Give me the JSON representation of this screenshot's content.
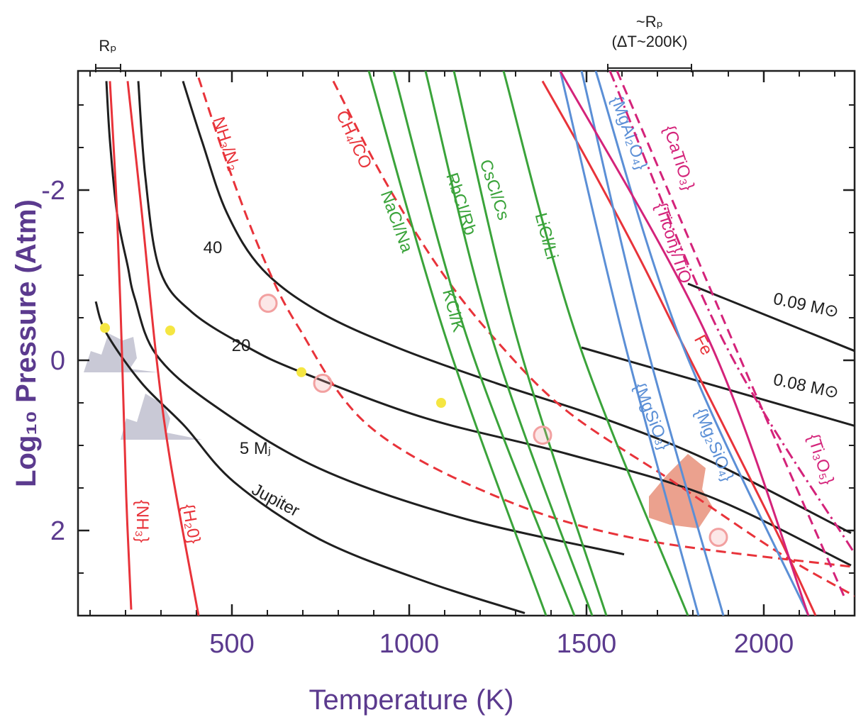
{
  "chart_data": {
    "type": "line",
    "xlabel": "Temperature  (K)",
    "ylabel": "Log₁₀ Pressure  (Atm)",
    "xlim": [
      66,
      2256
    ],
    "xticks": [
      500,
      1000,
      1500,
      2000
    ],
    "ylim": [
      -3.4,
      3.0
    ],
    "yticks": [
      -2,
      0,
      2
    ],
    "y_inverted": true,
    "annotations": [
      "Rₚ",
      "~Rₚ",
      "(ΔT~200K)"
    ],
    "series": [
      {
        "name": "Jupiter",
        "color": "#1f1f1f",
        "dash": "solid",
        "x": [
          116,
          146,
          246,
          366,
          506,
          746,
          1046,
          1326
        ],
        "values": [
          -0.69,
          -0.32,
          0.27,
          0.77,
          1.43,
          2.1,
          2.6,
          2.97
        ]
      },
      {
        "name": "5 Mⱼ",
        "color": "#1f1f1f",
        "dash": "solid",
        "x": [
          146,
          156,
          176,
          206,
          226,
          286,
          446,
          746,
          1146,
          1606
        ],
        "values": [
          -3.28,
          -2.58,
          -1.73,
          -1.11,
          -0.73,
          -0.07,
          0.52,
          1.27,
          1.85,
          2.28
        ]
      },
      {
        "name": "20",
        "color": "#1f1f1f",
        "dash": "solid",
        "x": [
          236,
          256,
          296,
          386,
          546,
          696,
          1046,
          1446,
          1846,
          2246
        ],
        "values": [
          -3.28,
          -2.15,
          -1.07,
          -0.57,
          -0.15,
          0.14,
          0.68,
          1.1,
          1.6,
          2.41
        ]
      },
      {
        "name": "40",
        "color": "#1f1f1f",
        "dash": "solid",
        "x": [
          362,
          416,
          486,
          586,
          746,
          966,
          1246,
          1546,
          1846,
          2246
        ],
        "values": [
          -3.28,
          -2.57,
          -1.73,
          -1.07,
          -0.57,
          -0.15,
          0.27,
          0.68,
          1.18,
          2.03
        ]
      },
      {
        "name": "0.09 M⊙",
        "color": "#1f1f1f",
        "dash": "solid",
        "x": [
          1786,
          2256
        ],
        "values": [
          -0.9,
          -0.11
        ]
      },
      {
        "name": "0.08 M⊙",
        "color": "#1f1f1f",
        "dash": "solid",
        "x": [
          1486,
          2256
        ],
        "values": [
          -0.15,
          0.77
        ]
      },
      {
        "name": "{NH₃}",
        "color": "#e8333a",
        "dash": "solid",
        "x": [
          156,
          176,
          190,
          202,
          216
        ],
        "values": [
          -3.28,
          -1.73,
          -0.07,
          1.6,
          2.93
        ]
      },
      {
        "name": "{H₂0}",
        "color": "#e8333a",
        "dash": "solid",
        "x": [
          206,
          246,
          286,
          326,
          406
        ],
        "values": [
          -3.28,
          -1.73,
          -0.07,
          1.18,
          3.0
        ]
      },
      {
        "name": "Fe",
        "color": "#e8333a",
        "dash": "solid",
        "x": [
          1376,
          1506,
          1646,
          1766,
          1906,
          2046,
          2146
        ],
        "values": [
          -3.28,
          -2.32,
          -1.23,
          -0.23,
          0.93,
          2.1,
          3.0
        ]
      },
      {
        "name": "NH₃/N₂",
        "color": "#e8333a",
        "dash": "dashed",
        "x": [
          406,
          486,
          586,
          686,
          886,
          1246,
          1646,
          2256
        ],
        "values": [
          -3.32,
          -2.32,
          -1.23,
          -0.4,
          0.77,
          1.6,
          2.1,
          2.43
        ]
      },
      {
        "name": "CH₄/CO",
        "color": "#e8333a",
        "dash": "dashed",
        "x": [
          786,
          926,
          1086,
          1246,
          1446,
          1746,
          2046,
          2256
        ],
        "values": [
          -3.28,
          -2.15,
          -1.07,
          -0.23,
          0.6,
          1.43,
          2.27,
          2.77
        ]
      },
      {
        "name": "NaCl/Na",
        "color": "#3aa33a",
        "dash": "solid",
        "x": [
          886,
          1106,
          1386
        ],
        "values": [
          -3.4,
          -0.23,
          3.0
        ]
      },
      {
        "name": "KCl/K",
        "color": "#3aa33a",
        "dash": "solid",
        "x": [
          956,
          1166,
          1466
        ],
        "values": [
          -3.4,
          -0.23,
          3.0
        ]
      },
      {
        "name": "RbCl/Rb",
        "color": "#3aa33a",
        "dash": "solid",
        "x": [
          1046,
          1236,
          1516
        ],
        "values": [
          -3.4,
          -0.23,
          3.0
        ]
      },
      {
        "name": "CsCl/Cs",
        "color": "#3aa33a",
        "dash": "solid",
        "x": [
          1126,
          1306,
          1556
        ],
        "values": [
          -3.4,
          -0.23,
          3.0
        ]
      },
      {
        "name": "LiCl/Li",
        "color": "#3aa33a",
        "dash": "solid",
        "x": [
          1266,
          1476,
          1786
        ],
        "values": [
          -3.4,
          -0.23,
          3.0
        ]
      },
      {
        "name": "{MgAl₂O₄}",
        "color": "#5b8fd6",
        "dash": "solid",
        "x": [
          1486,
          1666,
          1886
        ],
        "values": [
          -3.4,
          -0.23,
          3.0
        ]
      },
      {
        "name": "{MgSiO₃}",
        "color": "#5b8fd6",
        "dash": "solid",
        "x": [
          1426,
          1606,
          1816
        ],
        "values": [
          -3.4,
          -0.23,
          3.0
        ]
      },
      {
        "name": "{Mg₂SiO₄}",
        "color": "#5b8fd6",
        "dash": "solid",
        "x": [
          1526,
          1766,
          2126
        ],
        "values": [
          -3.4,
          -0.23,
          3.0
        ]
      },
      {
        "name": "{CaTiO₃}",
        "color": "#d4237a",
        "dash": "solid",
        "x": [
          1426,
          1846,
          2126
        ],
        "values": [
          -3.4,
          -0.23,
          3.0
        ]
      },
      {
        "name": "{Ticon}/TiO",
        "color": "#d4237a",
        "dash": "dashdot",
        "x": [
          1566,
          1886,
          2256
        ],
        "values": [
          -3.4,
          -0.23,
          2.27
        ]
      },
      {
        "name": "{Ti₃O₅}",
        "color": "#d4237a",
        "dash": "dashed",
        "x": [
          1586,
          1946,
          2226
        ],
        "values": [
          -3.4,
          0.1,
          2.77
        ]
      }
    ],
    "points": [
      {
        "color": "#f5e642",
        "style": "filled",
        "x": [
          142,
          326,
          696,
          1090
        ],
        "values": [
          -0.38,
          -0.35,
          0.14,
          0.5
        ]
      },
      {
        "color": "#f2a0a0",
        "style": "open",
        "x": [
          602,
          756,
          1376,
          1872
        ],
        "values": [
          -0.67,
          0.27,
          0.88,
          2.08
        ]
      }
    ]
  }
}
